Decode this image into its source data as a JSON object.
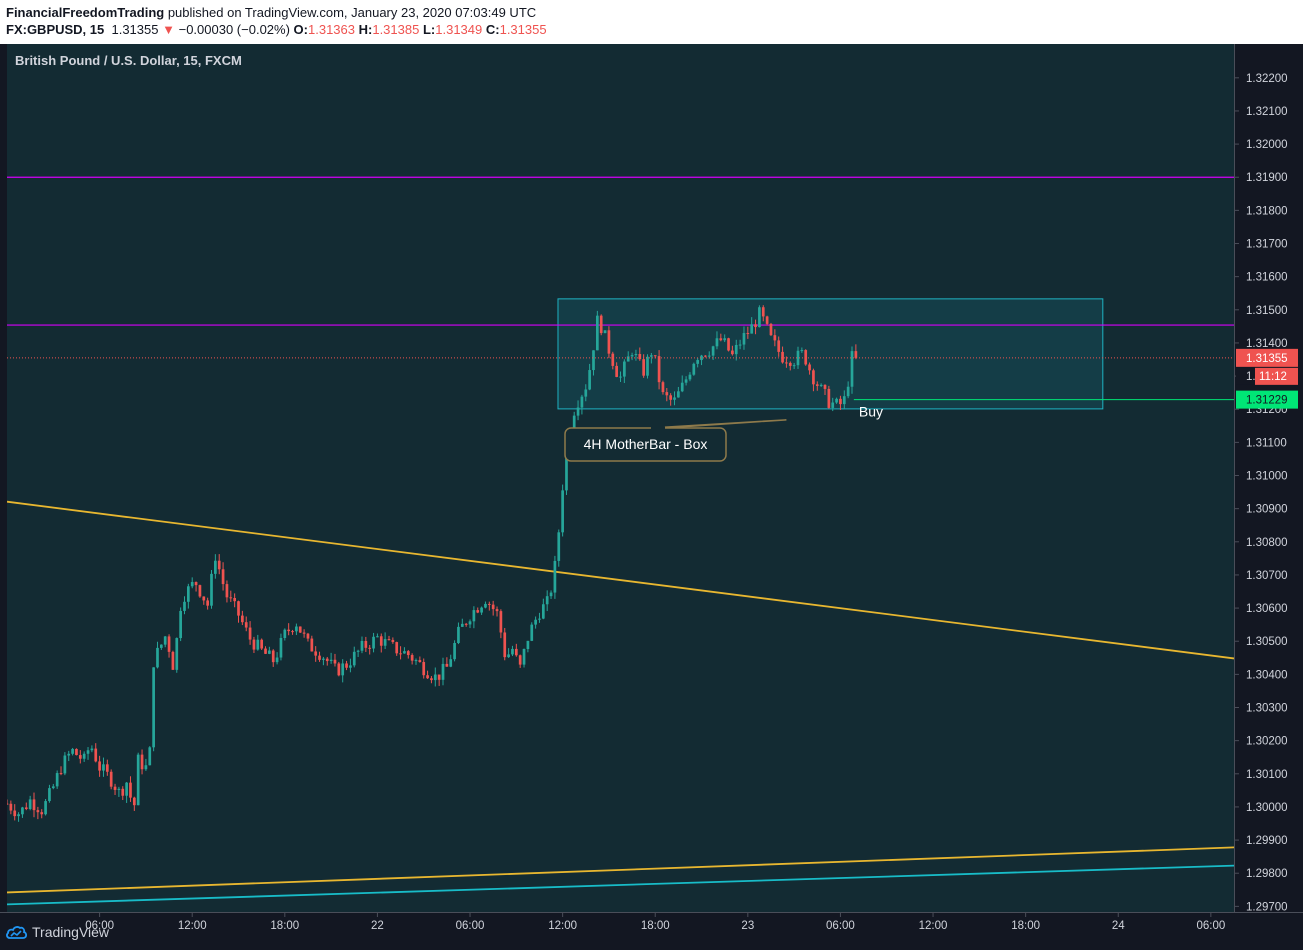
{
  "header": {
    "publisher": "FinancialFreedomTrading",
    "published_text": " published on TradingView.com, January 23, 2020 07:03:49 UTC",
    "symbol": "FX:GBPUSD, 15",
    "last": "1.31355",
    "arrow": "▼",
    "change": "−0.00030 (−0.02%)",
    "o_label": "O:",
    "o_value": "1.31363",
    "h_label": "H:",
    "h_value": "1.31385",
    "l_label": "L:",
    "l_value": "1.31349",
    "c_label": "C:",
    "c_value": "1.31355"
  },
  "legend": "British Pound / U.S. Dollar, 15, FXCM",
  "footer": {
    "brand": "TradingView"
  },
  "chart_data": {
    "type": "candlestick",
    "symbol": "GBPUSD",
    "timeframe": "15",
    "price_ticks": [
      "1.32200",
      "1.32100",
      "1.32000",
      "1.31900",
      "1.31800",
      "1.31700",
      "1.31600",
      "1.31500",
      "1.31400",
      "1.31300",
      "1.31200",
      "1.31100",
      "1.31000",
      "1.30900",
      "1.30800",
      "1.30700",
      "1.30600",
      "1.30500",
      "1.30400",
      "1.30300",
      "1.30200",
      "1.30100",
      "1.30000",
      "1.29900",
      "1.29800",
      "1.29700"
    ],
    "time_ticks": [
      "06:00",
      "12:00",
      "18:00",
      "22",
      "06:00",
      "12:00",
      "18:00",
      "23",
      "06:00",
      "12:00",
      "18:00",
      "24",
      "06:00"
    ],
    "time_tick_hours": [
      6,
      12,
      18,
      24,
      30,
      36,
      42,
      48,
      54,
      60,
      66,
      72,
      78
    ],
    "x_range_hours": [
      0,
      79.5
    ],
    "y_range": [
      1.29683,
      1.32302
    ],
    "labels": {
      "last_price": "1.31355",
      "countdown": "11:12",
      "buy_level": "1.31229",
      "buy_text": "Buy",
      "callout": "4H MotherBar - Box",
      "partial_tick": "1.3"
    },
    "colors": {
      "up": "#26a69a",
      "down": "#ef5350",
      "magenta": "#d500f9",
      "yellow": "#e8b730",
      "cyan": "#18bcc8",
      "box": "#1fb3c3",
      "buy": "#00e676",
      "callout": "#8e7a4b"
    },
    "horizontal_levels": [
      1.319,
      1.31454,
      1.31229
    ],
    "box": {
      "x_hours": [
        35.7,
        71.0
      ],
      "price": [
        1.31201,
        1.31533
      ]
    },
    "trendlines": [
      {
        "name": "upper-falling",
        "color": "yellow",
        "p1": [
          0,
          1.30921
        ],
        "p2": [
          79.5,
          1.30448
        ]
      },
      {
        "name": "lower-yellow",
        "color": "yellow",
        "p1": [
          0,
          1.29742
        ],
        "p2": [
          79.5,
          1.29878
        ]
      },
      {
        "name": "lower-cyan",
        "color": "cyan",
        "p1": [
          0,
          1.29706
        ],
        "p2": [
          79.5,
          1.29823
        ]
      }
    ],
    "close_path": [
      [
        0,
        1.3001
      ],
      [
        0.8,
        1.2998
      ],
      [
        1.5,
        1.3002
      ],
      [
        2.3,
        1.2999
      ],
      [
        3,
        1.3006
      ],
      [
        3.5,
        1.3012
      ],
      [
        4.2,
        1.3017
      ],
      [
        5,
        1.3014
      ],
      [
        5.4,
        1.3019
      ],
      [
        6,
        1.3012
      ],
      [
        6.8,
        1.3008
      ],
      [
        7.3,
        1.3004
      ],
      [
        7.8,
        1.3008
      ],
      [
        8.2,
        1.2998
      ],
      [
        8.5,
        1.3014
      ],
      [
        9.2,
        1.3011
      ],
      [
        9.5,
        1.3044
      ],
      [
        10.3,
        1.3052
      ],
      [
        10.8,
        1.3042
      ],
      [
        11.3,
        1.3063
      ],
      [
        12.2,
        1.3068
      ],
      [
        13,
        1.3061
      ],
      [
        13.5,
        1.3076
      ],
      [
        14.2,
        1.3064
      ],
      [
        15,
        1.3058
      ],
      [
        15.7,
        1.3051
      ],
      [
        16.5,
        1.3047
      ],
      [
        17.3,
        1.3044
      ],
      [
        18,
        1.3052
      ],
      [
        18.7,
        1.3056
      ],
      [
        19.5,
        1.3049
      ],
      [
        20.4,
        1.3046
      ],
      [
        21.3,
        1.3041
      ],
      [
        22,
        1.3043
      ],
      [
        23,
        1.3048
      ],
      [
        24,
        1.3051
      ],
      [
        25,
        1.3048
      ],
      [
        26,
        1.3046
      ],
      [
        27,
        1.3042
      ],
      [
        27.8,
        1.3039
      ],
      [
        28.5,
        1.3042
      ],
      [
        29.3,
        1.3053
      ],
      [
        30,
        1.3058
      ],
      [
        31,
        1.3063
      ],
      [
        31.8,
        1.3058
      ],
      [
        32.3,
        1.3045
      ],
      [
        32.8,
        1.3048
      ],
      [
        33.2,
        1.3041
      ],
      [
        33.8,
        1.3052
      ],
      [
        34.5,
        1.3059
      ],
      [
        35.1,
        1.3062
      ],
      [
        35.6,
        1.3075
      ],
      [
        36.2,
        1.3108
      ],
      [
        36.8,
        1.3121
      ],
      [
        37.6,
        1.3128
      ],
      [
        38.3,
        1.3148
      ],
      [
        39,
        1.3138
      ],
      [
        39.7,
        1.3129
      ],
      [
        40.5,
        1.3138
      ],
      [
        41.2,
        1.3131
      ],
      [
        41.8,
        1.3138
      ],
      [
        42.5,
        1.3124
      ],
      [
        43.2,
        1.3122
      ],
      [
        43.9,
        1.3128
      ],
      [
        44.6,
        1.3136
      ],
      [
        45.5,
        1.3138
      ],
      [
        46.3,
        1.3141
      ],
      [
        47,
        1.3136
      ],
      [
        47.6,
        1.3141
      ],
      [
        48.3,
        1.3145
      ],
      [
        48.8,
        1.3149
      ],
      [
        49.5,
        1.3141
      ],
      [
        50.2,
        1.3136
      ],
      [
        51,
        1.3135
      ],
      [
        51.6,
        1.3137
      ],
      [
        52.1,
        1.3131
      ],
      [
        52.7,
        1.3126
      ],
      [
        53.3,
        1.3122
      ],
      [
        53.9,
        1.3121
      ],
      [
        54.3,
        1.3123
      ],
      [
        54.8,
        1.3137
      ],
      [
        55,
        1.31355
      ]
    ]
  }
}
